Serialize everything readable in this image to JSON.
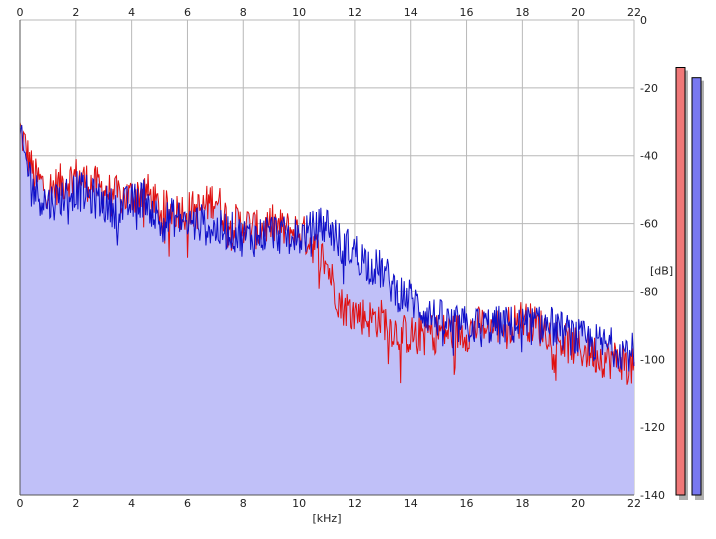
{
  "chart_data": {
    "type": "area",
    "xlabel": "[kHz]",
    "ylabel": "[dB]",
    "xlim": [
      0,
      22
    ],
    "ylim": [
      -140,
      0
    ],
    "x_ticks": [
      "0",
      "2",
      "4",
      "6",
      "8",
      "10",
      "12",
      "14",
      "16",
      "18",
      "20",
      "22"
    ],
    "y_ticks": [
      "0",
      "-20",
      "-40",
      "-60",
      "-80",
      "-100",
      "-120",
      "-140"
    ],
    "grid": true,
    "series": [
      {
        "color": "#e01010",
        "x": [
          0,
          0.5,
          1,
          1.5,
          2,
          2.5,
          3,
          3.5,
          4,
          4.5,
          5,
          5.5,
          6,
          6.5,
          7,
          7.5,
          8,
          8.5,
          9,
          9.5,
          10,
          10.5,
          11,
          11.5,
          12,
          12.5,
          13,
          13.5,
          14,
          14.5,
          15,
          15.5,
          16,
          16.5,
          17,
          17.5,
          18,
          18.5,
          19,
          19.5,
          20,
          20.5,
          21,
          21.5,
          22
        ],
        "y": [
          -32,
          -46,
          -50,
          -48,
          -46,
          -48,
          -50,
          -52,
          -52,
          -50,
          -56,
          -56,
          -56,
          -56,
          -52,
          -60,
          -60,
          -62,
          -60,
          -62,
          -62,
          -66,
          -72,
          -84,
          -86,
          -88,
          -88,
          -92,
          -93,
          -92,
          -92,
          -92,
          -92,
          -90,
          -90,
          -90,
          -88,
          -90,
          -92,
          -95,
          -97,
          -98,
          -100,
          -100,
          -103
        ]
      },
      {
        "color": "#1010c8",
        "x": [
          0,
          0.5,
          1,
          1.5,
          2,
          2.5,
          3,
          3.5,
          4,
          4.5,
          5,
          5.5,
          6,
          6.5,
          7,
          7.5,
          8,
          8.5,
          9,
          9.5,
          10,
          10.5,
          11,
          11.5,
          12,
          12.5,
          13,
          13.5,
          14,
          14.5,
          15,
          15.5,
          16,
          16.5,
          17,
          17.5,
          18,
          18.5,
          19,
          19.5,
          20,
          20.5,
          21,
          21.5,
          22
        ],
        "y": [
          -35,
          -50,
          -54,
          -52,
          -50,
          -52,
          -54,
          -56,
          -54,
          -52,
          -60,
          -58,
          -60,
          -60,
          -62,
          -62,
          -64,
          -64,
          -62,
          -64,
          -64,
          -62,
          -60,
          -66,
          -68,
          -72,
          -74,
          -80,
          -82,
          -86,
          -88,
          -90,
          -90,
          -90,
          -90,
          -90,
          -90,
          -90,
          -90,
          -92,
          -94,
          -95,
          -96,
          -97,
          -98
        ]
      }
    ],
    "level_meters": [
      {
        "color": "#f07878",
        "level_db": -14
      },
      {
        "color": "#7878f0",
        "level_db": -17
      }
    ],
    "fill_color": "#c0c0f8"
  }
}
